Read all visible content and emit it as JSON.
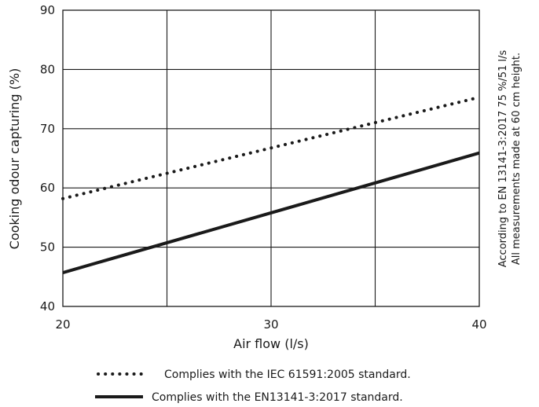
{
  "chart_data": {
    "type": "line",
    "xlabel": "Air flow (l/s)",
    "ylabel": "Cooking odour capturing (%)",
    "xlim": [
      20,
      40
    ],
    "ylim": [
      40,
      90
    ],
    "x_ticks": [
      20,
      30,
      40
    ],
    "y_ticks": [
      40,
      50,
      60,
      70,
      80,
      90
    ],
    "grid": true,
    "notes": [
      "According to EN 13141-3:2017 75 %/51 l/s",
      "All measurements made at 60 cm height."
    ],
    "series": [
      {
        "name": "Complies with the IEC 61591:2005 standard.",
        "style": "dotted",
        "color": "#1a1a1a",
        "x": [
          20,
          40
        ],
        "y": [
          58.2,
          75.3
        ]
      },
      {
        "name": "Complies with the EN13141-3:2017 standard.",
        "style": "solid",
        "color": "#1a1a1a",
        "x": [
          20,
          40
        ],
        "y": [
          45.7,
          65.9
        ]
      }
    ]
  }
}
